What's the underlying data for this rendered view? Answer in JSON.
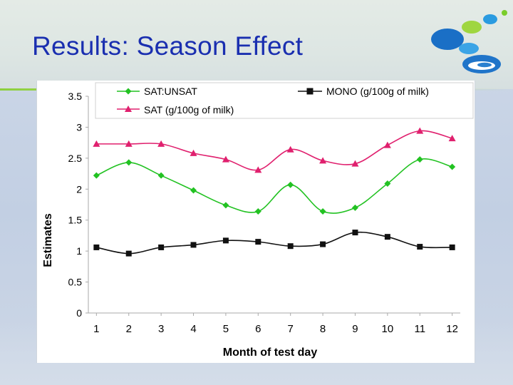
{
  "slide": {
    "title": "Results: Season Effect"
  },
  "chart_data": {
    "type": "line",
    "title": "",
    "xlabel": "Month of test day",
    "ylabel": "Estimates",
    "categories": [
      "1",
      "2",
      "3",
      "4",
      "5",
      "6",
      "7",
      "8",
      "9",
      "10",
      "11",
      "12"
    ],
    "x": [
      1,
      2,
      3,
      4,
      5,
      6,
      7,
      8,
      9,
      10,
      11,
      12
    ],
    "ylim": [
      0,
      3.5
    ],
    "yticks": [
      0,
      0.5,
      1,
      1.5,
      2,
      2.5,
      3,
      3.5
    ],
    "ytick_labels": [
      "0",
      "0.5",
      "1",
      "1.5",
      "2",
      "2.5",
      "3",
      "3.5"
    ],
    "legend_position": "top",
    "series": [
      {
        "name": "SAT:UNSAT",
        "marker": "diamond",
        "color": "#22c222",
        "values": [
          2.22,
          2.43,
          2.22,
          1.98,
          1.74,
          1.64,
          2.07,
          1.64,
          1.7,
          2.09,
          2.48,
          2.36
        ]
      },
      {
        "name": "SAT (g/100g of milk)",
        "marker": "triangle",
        "color": "#e0206e",
        "values": [
          2.73,
          2.73,
          2.73,
          2.58,
          2.48,
          2.31,
          2.64,
          2.46,
          2.41,
          2.71,
          2.94,
          2.82
        ]
      },
      {
        "name": "MONO (g/100g of milk)",
        "marker": "square",
        "color": "#111111",
        "values": [
          1.06,
          0.96,
          1.06,
          1.1,
          1.17,
          1.15,
          1.08,
          1.11,
          1.3,
          1.23,
          1.07,
          1.06
        ]
      }
    ]
  }
}
